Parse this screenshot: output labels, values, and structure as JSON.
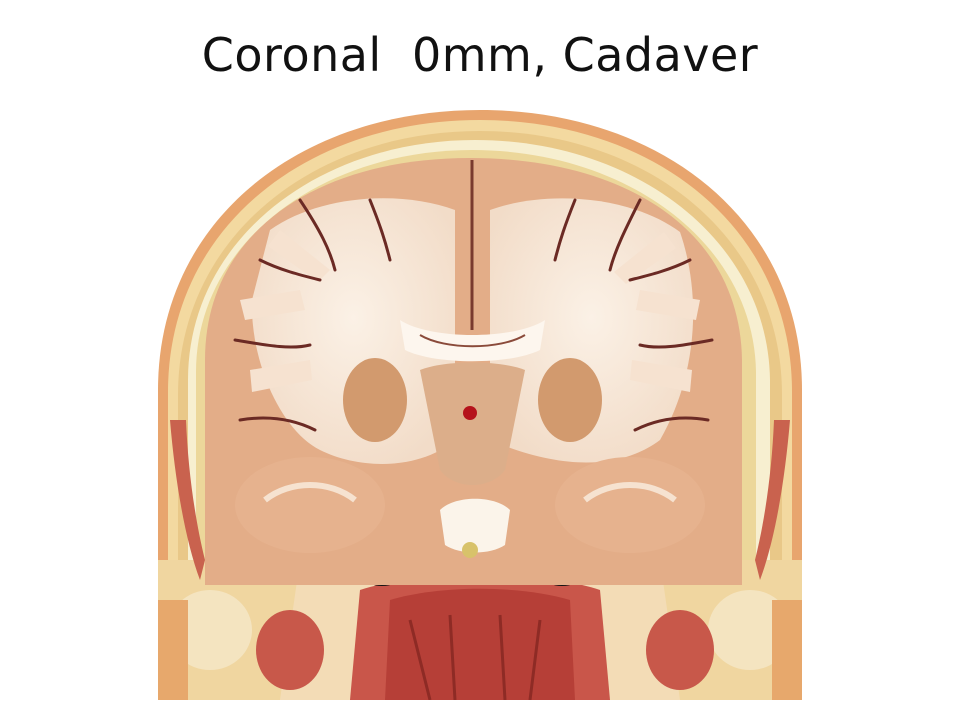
{
  "slide": {
    "title": "Coronal  0mm, Cadaver"
  },
  "specimen": {
    "description_icon": "brain-coronal-section-photo",
    "marker_color": "#b5121b"
  },
  "colors": {
    "skin": "#e9a070",
    "scalp_fat": "#f2dc9a",
    "skull": "#f6ecc8",
    "dura": "#e6cf8c",
    "white_matter": "#f8e9dc",
    "gray_matter": "#e2aa86",
    "deep_gray": "#d29a6e",
    "sulcus": "#6b2a24",
    "muscle": "#bf4a40",
    "airway": "#141414"
  }
}
